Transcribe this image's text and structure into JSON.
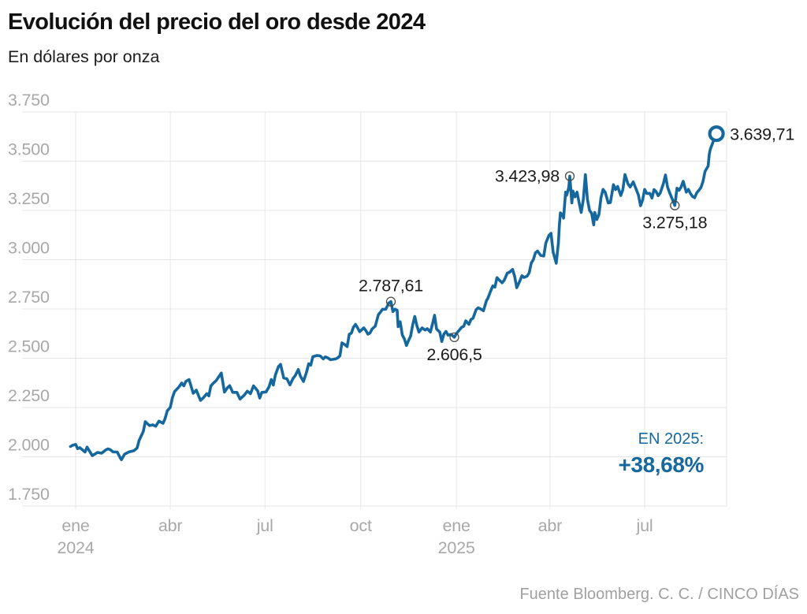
{
  "header": {
    "title": "Evolución del precio del oro desde 2024",
    "subtitle": "En dólares por onza"
  },
  "badge": {
    "label": "EN 2025:",
    "value": "+38,68%"
  },
  "footer": {
    "source": "Fuente Bloomberg. C. C. / CINCO DÍAS"
  },
  "colors": {
    "line": "#15689E",
    "grid": "#E6E6E6",
    "axis_label": "#A8A8A8",
    "annotation": "#1B1B1B",
    "accent_blue": "#16689D"
  },
  "chart_data": {
    "type": "line",
    "title": "Evolución del precio del oro desde 2024",
    "ylabel": "En dólares por onza",
    "ylim": [
      1750,
      3750
    ],
    "grid": true,
    "x_encoding": "days since 2024-01-01",
    "y_ticks": [
      {
        "value": 3750,
        "label": "3.750"
      },
      {
        "value": 3500,
        "label": "3.500"
      },
      {
        "value": 3250,
        "label": "3.250"
      },
      {
        "value": 3000,
        "label": "3.000"
      },
      {
        "value": 2750,
        "label": "2.750"
      },
      {
        "value": 2500,
        "label": "2.500"
      },
      {
        "value": 2250,
        "label": "2.250"
      },
      {
        "value": 2000,
        "label": "2.000"
      },
      {
        "value": 1750,
        "label": "1.750"
      }
    ],
    "x_ticks": [
      {
        "day": 0,
        "label": "ene",
        "year": "2024"
      },
      {
        "day": 91,
        "label": "abr"
      },
      {
        "day": 182,
        "label": "jul"
      },
      {
        "day": 274,
        "label": "oct"
      },
      {
        "day": 366,
        "label": "ene",
        "year": "2025"
      },
      {
        "day": 456,
        "label": "abr"
      },
      {
        "day": 547,
        "label": "jul"
      }
    ],
    "series": [
      {
        "points": [
          [
            -5,
            2052
          ],
          [
            -3,
            2058
          ],
          [
            0,
            2063
          ],
          [
            2,
            2041
          ],
          [
            4,
            2046
          ],
          [
            9,
            2024
          ],
          [
            11,
            2049
          ],
          [
            16,
            2006
          ],
          [
            18,
            2012
          ],
          [
            21,
            2022
          ],
          [
            25,
            2018
          ],
          [
            29,
            2035
          ],
          [
            31,
            2040
          ],
          [
            33,
            2037
          ],
          [
            36,
            2025
          ],
          [
            40,
            2024
          ],
          [
            43,
            1993
          ],
          [
            44,
            1985
          ],
          [
            47,
            2013
          ],
          [
            51,
            2024
          ],
          [
            56,
            2031
          ],
          [
            59,
            2044
          ],
          [
            61,
            2083
          ],
          [
            65,
            2128
          ],
          [
            67,
            2178
          ],
          [
            71,
            2158
          ],
          [
            74,
            2162
          ],
          [
            77,
            2155
          ],
          [
            80,
            2181
          ],
          [
            84,
            2170
          ],
          [
            86,
            2194
          ],
          [
            88,
            2233
          ],
          [
            91,
            2251
          ],
          [
            93,
            2300
          ],
          [
            95,
            2330
          ],
          [
            99,
            2353
          ],
          [
            102,
            2374
          ],
          [
            104,
            2360
          ],
          [
            106,
            2383
          ],
          [
            109,
            2392
          ],
          [
            113,
            2322
          ],
          [
            116,
            2338
          ],
          [
            120,
            2286
          ],
          [
            123,
            2301
          ],
          [
            126,
            2320
          ],
          [
            128,
            2309
          ],
          [
            130,
            2360
          ],
          [
            133,
            2377
          ],
          [
            135,
            2386
          ],
          [
            140,
            2425
          ],
          [
            143,
            2328
          ],
          [
            146,
            2351
          ],
          [
            148,
            2361
          ],
          [
            151,
            2327
          ],
          [
            155,
            2327
          ],
          [
            158,
            2293
          ],
          [
            162,
            2312
          ],
          [
            165,
            2333
          ],
          [
            168,
            2320
          ],
          [
            171,
            2360
          ],
          [
            175,
            2334
          ],
          [
            177,
            2298
          ],
          [
            179,
            2327
          ],
          [
            183,
            2329
          ],
          [
            186,
            2356
          ],
          [
            188,
            2392
          ],
          [
            190,
            2364
          ],
          [
            192,
            2415
          ],
          [
            195,
            2458
          ],
          [
            197,
            2469
          ],
          [
            200,
            2400
          ],
          [
            203,
            2396
          ],
          [
            206,
            2365
          ],
          [
            209,
            2398
          ],
          [
            211,
            2411
          ],
          [
            214,
            2443
          ],
          [
            216,
            2410
          ],
          [
            219,
            2382
          ],
          [
            222,
            2430
          ],
          [
            224,
            2472
          ],
          [
            226,
            2465
          ],
          [
            228,
            2508
          ],
          [
            232,
            2514
          ],
          [
            235,
            2512
          ],
          [
            238,
            2497
          ],
          [
            240,
            2507
          ],
          [
            242,
            2503
          ],
          [
            245,
            2493
          ],
          [
            247,
            2494
          ],
          [
            250,
            2497
          ],
          [
            252,
            2502
          ],
          [
            254,
            2512
          ],
          [
            256,
            2578
          ],
          [
            259,
            2568
          ],
          [
            261,
            2559
          ],
          [
            263,
            2622
          ],
          [
            265,
            2627
          ],
          [
            267,
            2657
          ],
          [
            269,
            2672
          ],
          [
            271,
            2655
          ],
          [
            273,
            2635
          ],
          [
            277,
            2654
          ],
          [
            279,
            2640
          ],
          [
            281,
            2622
          ],
          [
            283,
            2629
          ],
          [
            285,
            2649
          ],
          [
            288,
            2663
          ],
          [
            291,
            2721
          ],
          [
            293,
            2734
          ],
          [
            295,
            2749
          ],
          [
            298,
            2748
          ],
          [
            301,
            2780
          ],
          [
            303,
            2787.61
          ],
          [
            305,
            2737
          ],
          [
            307,
            2749
          ],
          [
            309,
            2744
          ],
          [
            310,
            2660
          ],
          [
            312,
            2685
          ],
          [
            314,
            2618
          ],
          [
            316,
            2598
          ],
          [
            318,
            2565
          ],
          [
            320,
            2590
          ],
          [
            322,
            2612
          ],
          [
            324,
            2670
          ],
          [
            326,
            2712
          ],
          [
            328,
            2665
          ],
          [
            330,
            2633
          ],
          [
            333,
            2654
          ],
          [
            336,
            2643
          ],
          [
            338,
            2650
          ],
          [
            341,
            2633
          ],
          [
            343,
            2674
          ],
          [
            345,
            2718
          ],
          [
            347,
            2648
          ],
          [
            350,
            2633
          ],
          [
            352,
            2585
          ],
          [
            354,
            2623
          ],
          [
            356,
            2636
          ],
          [
            358,
            2617
          ],
          [
            361,
            2621
          ],
          [
            364,
            2606.5
          ],
          [
            366,
            2625
          ],
          [
            368,
            2638
          ],
          [
            371,
            2657
          ],
          [
            373,
            2662
          ],
          [
            375,
            2690
          ],
          [
            378,
            2672
          ],
          [
            380,
            2697
          ],
          [
            382,
            2703
          ],
          [
            385,
            2747
          ],
          [
            387,
            2756
          ],
          [
            390,
            2748
          ],
          [
            392,
            2741
          ],
          [
            395,
            2794
          ],
          [
            396,
            2801
          ],
          [
            399,
            2842
          ],
          [
            401,
            2867
          ],
          [
            403,
            2861
          ],
          [
            405,
            2909
          ],
          [
            407,
            2898
          ],
          [
            410,
            2883
          ],
          [
            412,
            2896
          ],
          [
            415,
            2933
          ],
          [
            417,
            2936
          ],
          [
            420,
            2951
          ],
          [
            422,
            2916
          ],
          [
            424,
            2858
          ],
          [
            427,
            2892
          ],
          [
            429,
            2919
          ],
          [
            431,
            2910
          ],
          [
            434,
            2917
          ],
          [
            436,
            2934
          ],
          [
            438,
            2984
          ],
          [
            440,
            3001
          ],
          [
            442,
            3035
          ],
          [
            444,
            3044
          ],
          [
            447,
            3022
          ],
          [
            450,
            3019
          ],
          [
            452,
            3085
          ],
          [
            455,
            3124
          ],
          [
            457,
            3134
          ],
          [
            459,
            3038
          ],
          [
            462,
            2982
          ],
          [
            464,
            3083
          ],
          [
            465,
            3176
          ],
          [
            466,
            3238
          ],
          [
            468,
            3227
          ],
          [
            469,
            3211
          ],
          [
            471,
            3343
          ],
          [
            472,
            3327
          ],
          [
            474,
            3366
          ],
          [
            475,
            3423.98
          ],
          [
            477,
            3288
          ],
          [
            478,
            3349
          ],
          [
            480,
            3319
          ],
          [
            482,
            3343
          ],
          [
            484,
            3288
          ],
          [
            486,
            3240
          ],
          [
            488,
            3306
          ],
          [
            490,
            3432
          ],
          [
            492,
            3306
          ],
          [
            494,
            3250
          ],
          [
            496,
            3236
          ],
          [
            498,
            3177
          ],
          [
            499,
            3240
          ],
          [
            501,
            3204
          ],
          [
            503,
            3230
          ],
          [
            505,
            3315
          ],
          [
            507,
            3357
          ],
          [
            509,
            3343
          ],
          [
            512,
            3288
          ],
          [
            514,
            3290
          ],
          [
            517,
            3381
          ],
          [
            519,
            3356
          ],
          [
            521,
            3372
          ],
          [
            524,
            3326
          ],
          [
            526,
            3355
          ],
          [
            528,
            3432
          ],
          [
            531,
            3385
          ],
          [
            533,
            3369
          ],
          [
            536,
            3395
          ],
          [
            538,
            3368
          ],
          [
            541,
            3328
          ],
          [
            543,
            3274
          ],
          [
            545,
            3303
          ],
          [
            547,
            3357
          ],
          [
            549,
            3336
          ],
          [
            552,
            3337
          ],
          [
            554,
            3313
          ],
          [
            556,
            3356
          ],
          [
            558,
            3345
          ],
          [
            560,
            3325
          ],
          [
            562,
            3339
          ],
          [
            565,
            3387
          ],
          [
            567,
            3430
          ],
          [
            569,
            3368
          ],
          [
            571,
            3340
          ],
          [
            573,
            3314
          ],
          [
            576,
            3275.18
          ],
          [
            578,
            3363
          ],
          [
            580,
            3352
          ],
          [
            582,
            3369
          ],
          [
            584,
            3398
          ],
          [
            587,
            3343
          ],
          [
            589,
            3357
          ],
          [
            591,
            3336
          ],
          [
            593,
            3321
          ],
          [
            595,
            3315
          ],
          [
            597,
            3339
          ],
          [
            599,
            3352
          ],
          [
            601,
            3365
          ],
          [
            603,
            3397
          ],
          [
            605,
            3448
          ],
          [
            608,
            3476
          ],
          [
            609,
            3533
          ],
          [
            610,
            3559
          ],
          [
            612,
            3587
          ],
          [
            614,
            3616
          ],
          [
            616,
            3639.71
          ]
        ]
      }
    ],
    "annotations": [
      {
        "text": "2.787,61",
        "day": 303,
        "value": 2787.61,
        "placement": "above",
        "marker": "small"
      },
      {
        "text": "2.606,5",
        "day": 364,
        "value": 2606.5,
        "placement": "below",
        "marker": "small"
      },
      {
        "text": "3.423,98",
        "day": 475,
        "value": 3423.98,
        "placement": "left",
        "marker": "small"
      },
      {
        "text": "3.275,18",
        "day": 576,
        "value": 3275.18,
        "placement": "below",
        "marker": "small"
      },
      {
        "text": "3.639,71",
        "day": 616,
        "value": 3639.71,
        "placement": "right",
        "marker": "end-ring"
      }
    ]
  }
}
